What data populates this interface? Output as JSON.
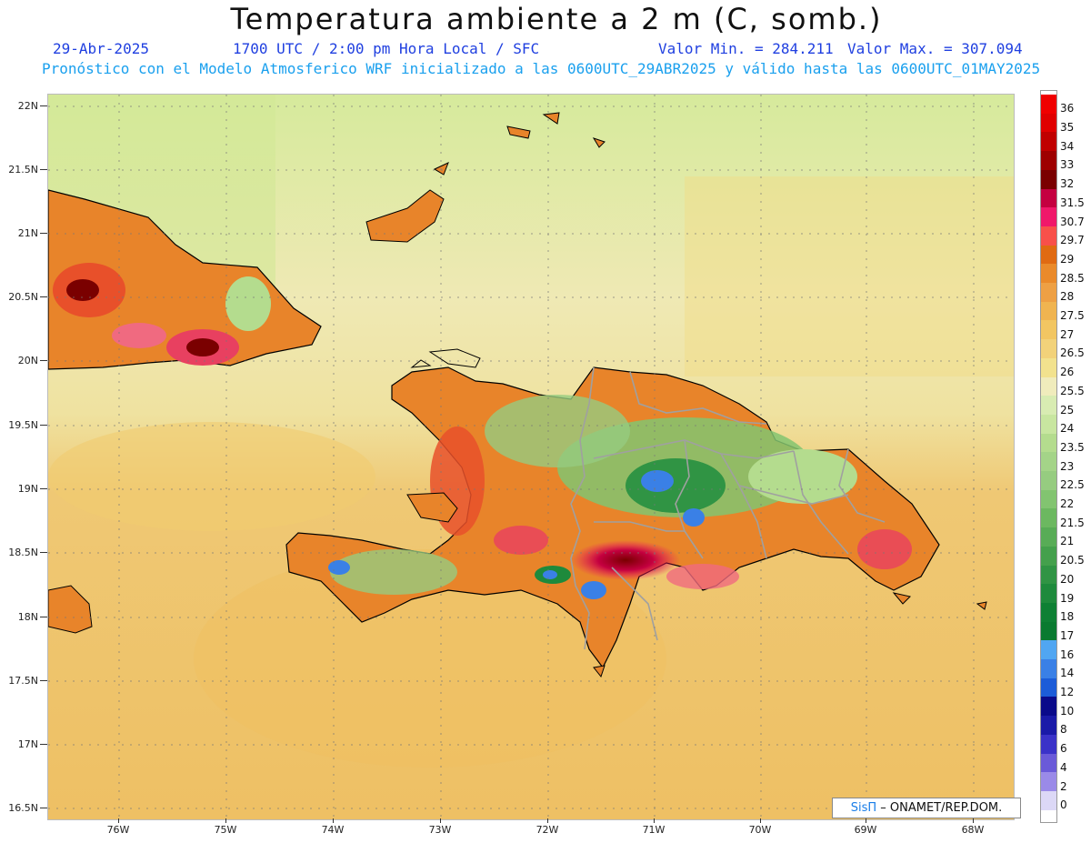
{
  "header": {
    "title": "Temperatura ambiente a 2 m (C, somb.)",
    "date": "29-Abr-2025",
    "time": "1700 UTC / 2:00 pm Hora Local / SFC",
    "min_label": "Valor Min. = 284.211",
    "max_label": "Valor Max. = 307.094",
    "subtitle": "Pronóstico con el Modelo Atmosferico WRF inicializado a las 0600UTC_29ABR2025 y válido hasta las  0600UTC_01MAY2025"
  },
  "map": {
    "lat_labels": [
      "22N",
      "21.5N",
      "21N",
      "20.5N",
      "20N",
      "19.5N",
      "19N",
      "18.5N",
      "18N",
      "17.5N",
      "17N",
      "16.5N"
    ],
    "lon_labels": [
      "76W",
      "75W",
      "74W",
      "73W",
      "72W",
      "71W",
      "70W",
      "69W",
      "68W"
    ],
    "credit_brand": "SisΠ",
    "credit_rest": " – ONAMET/REP.DOM."
  },
  "legend": {
    "labels": [
      "36",
      "35",
      "34",
      "33",
      "32",
      "31.5",
      "30.7",
      "29.7",
      "29",
      "28.5",
      "28",
      "27.5",
      "27",
      "26.5",
      "26",
      "25.5",
      "25",
      "24",
      "23.5",
      "23",
      "22.5",
      "22",
      "21.5",
      "21",
      "20.5",
      "20",
      "19",
      "18",
      "17",
      "16",
      "14",
      "12",
      "10",
      "8",
      "6",
      "4",
      "2",
      "0"
    ],
    "colors": [
      "#f00000",
      "#e00000",
      "#c00000",
      "#9e0000",
      "#7a0000",
      "#c40040",
      "#f0186a",
      "#f8504a",
      "#e06a12",
      "#ea8a2a",
      "#eea044",
      "#f0b450",
      "#f2c662",
      "#f2d27a",
      "#f2e28e",
      "#f0ecbc",
      "#d8ecb2",
      "#c8e6a0",
      "#b4dc8e",
      "#a4d488",
      "#96cc80",
      "#82c470",
      "#6cb860",
      "#58ac56",
      "#44a04c",
      "#309444",
      "#1e8a3c",
      "#0e8034",
      "#0a7a30",
      "#50a6f2",
      "#3a80e6",
      "#1c5cd8",
      "#0a0a8a",
      "#1a1aa8",
      "#3a32c8",
      "#6a5ad8",
      "#9a8ae8",
      "#dcd8f6"
    ]
  },
  "colors": {
    "title": "#111111",
    "date_line": "#1f3fe0",
    "subtitle": "#1aa0ee",
    "ocean_north": "#f0eab0",
    "ocean_south": "#eec46a",
    "coastline": "#000000",
    "province_border": "#a0a0a0"
  }
}
